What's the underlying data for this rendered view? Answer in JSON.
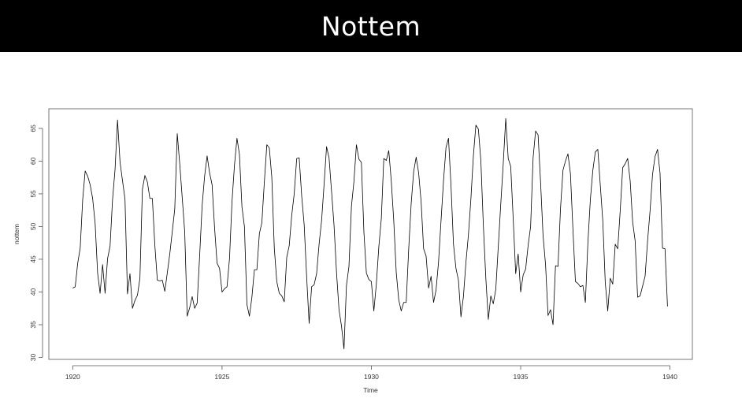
{
  "slide": {
    "title": "Nottem"
  },
  "chart_data": {
    "type": "line",
    "title": "",
    "xlabel": "Time",
    "ylabel": "nottem",
    "xlim": [
      1919.2,
      1940.75
    ],
    "ylim": [
      29.7,
      68
    ],
    "x_ticks": [
      1920,
      1925,
      1930,
      1935,
      1940
    ],
    "y_ticks": [
      30,
      35,
      40,
      45,
      50,
      55,
      60,
      65
    ],
    "start": 1920,
    "frequency": 12,
    "colors": {
      "line": "#000000",
      "frame": "#555555"
    },
    "series": [
      {
        "name": "",
        "values": [
          40.6,
          40.8,
          44.4,
          46.7,
          54.1,
          58.5,
          57.7,
          56.4,
          54.3,
          50.5,
          42.9,
          39.8,
          44.2,
          39.8,
          45.1,
          47.0,
          54.1,
          58.7,
          66.3,
          59.9,
          57.0,
          54.2,
          39.7,
          42.8,
          37.5,
          38.7,
          39.5,
          42.1,
          55.7,
          57.8,
          56.8,
          54.3,
          54.3,
          47.1,
          41.8,
          41.7,
          41.8,
          40.1,
          42.9,
          45.8,
          49.2,
          52.7,
          64.2,
          59.6,
          54.4,
          49.2,
          36.3,
          37.6,
          39.3,
          37.5,
          38.3,
          45.5,
          53.2,
          57.7,
          60.8,
          58.2,
          56.4,
          49.8,
          44.4,
          43.6,
          40.0,
          40.5,
          40.8,
          45.1,
          53.8,
          59.4,
          63.5,
          61.0,
          53.0,
          50.0,
          38.1,
          36.3,
          39.2,
          43.4,
          43.4,
          48.9,
          50.6,
          56.8,
          62.5,
          62.0,
          57.5,
          46.7,
          41.6,
          39.8,
          39.4,
          38.5,
          45.3,
          47.1,
          51.7,
          55.0,
          60.4,
          60.5,
          54.7,
          50.3,
          42.3,
          35.2,
          40.8,
          41.1,
          42.8,
          47.3,
          50.9,
          56.4,
          62.2,
          60.5,
          55.4,
          50.2,
          43.0,
          37.3,
          34.8,
          31.3,
          41.0,
          43.9,
          53.1,
          56.9,
          62.5,
          60.3,
          59.8,
          49.2,
          42.9,
          41.9,
          41.6,
          37.1,
          41.2,
          46.9,
          51.2,
          60.4,
          60.1,
          61.6,
          57.0,
          50.9,
          43.0,
          38.8,
          37.1,
          38.4,
          38.4,
          46.5,
          53.5,
          58.4,
          60.6,
          58.2,
          53.8,
          46.6,
          45.5,
          40.6,
          42.4,
          38.4,
          40.3,
          44.6,
          50.9,
          57.0,
          62.1,
          63.5,
          56.3,
          47.3,
          43.6,
          41.8,
          36.2,
          39.3,
          44.5,
          48.7,
          54.2,
          60.8,
          65.5,
          64.9,
          60.1,
          50.2,
          42.1,
          35.8,
          39.4,
          38.2,
          40.4,
          46.9,
          53.4,
          59.6,
          66.5,
          60.4,
          59.2,
          51.2,
          42.8,
          45.8,
          40.0,
          42.6,
          43.5,
          47.1,
          50.0,
          60.5,
          64.6,
          64.0,
          56.8,
          48.6,
          44.2,
          36.4,
          37.3,
          35.0,
          44.0,
          43.9,
          52.7,
          58.6,
          60.0,
          61.1,
          58.1,
          49.6,
          41.6,
          41.3,
          40.8,
          41.0,
          38.4,
          47.4,
          54.1,
          58.6,
          61.4,
          61.8,
          56.3,
          50.9,
          41.4,
          37.1,
          42.1,
          41.2,
          47.3,
          46.6,
          52.4,
          59.0,
          59.6,
          60.4,
          57.0,
          50.7,
          47.8,
          39.2,
          39.4,
          40.9,
          42.4,
          47.8,
          52.4,
          58.0,
          60.7,
          61.8,
          58.2,
          46.7,
          46.6,
          37.8
        ]
      }
    ]
  }
}
